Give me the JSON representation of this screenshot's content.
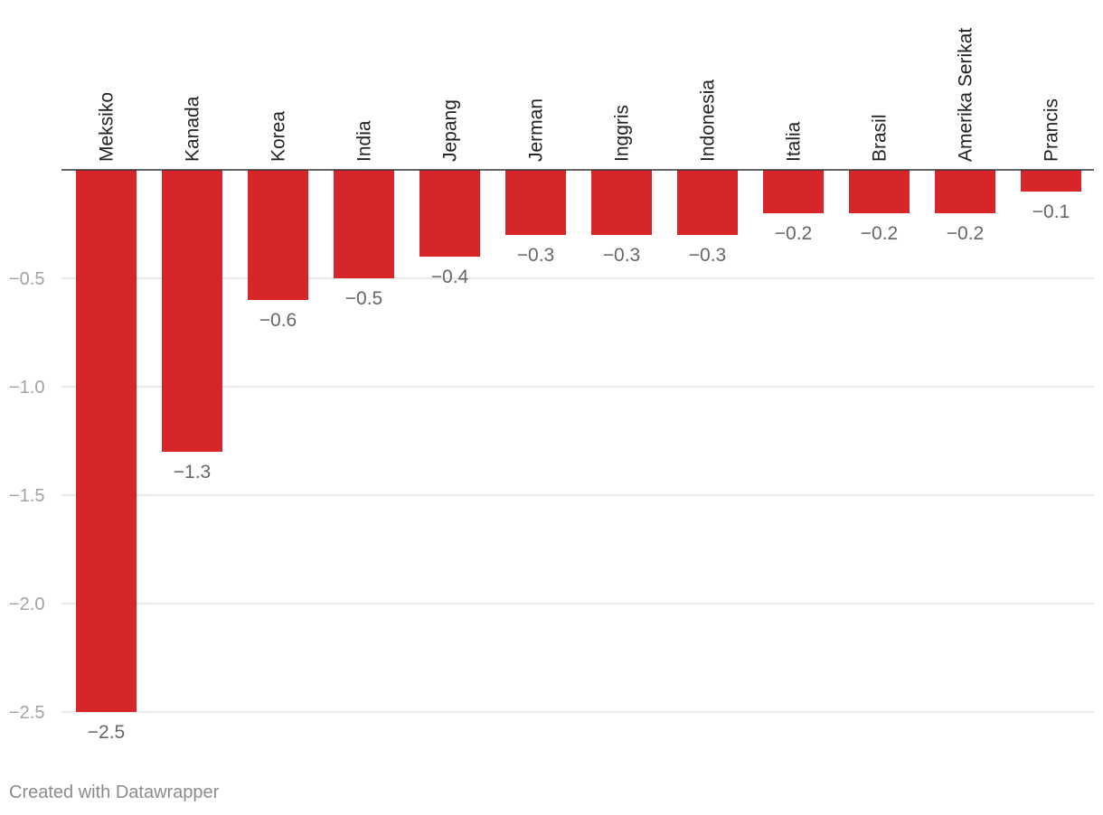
{
  "chart_data": {
    "type": "bar",
    "orientation": "vertical",
    "categories": [
      "Meksiko",
      "Kanada",
      "Korea",
      "India",
      "Jepang",
      "Jerman",
      "Inggris",
      "Indonesia",
      "Italia",
      "Brasil",
      "Amerika Serikat",
      "Prancis"
    ],
    "values": [
      -2.5,
      -1.3,
      -0.6,
      -0.5,
      -0.4,
      -0.3,
      -0.3,
      -0.3,
      -0.2,
      -0.2,
      -0.2,
      -0.1
    ],
    "value_labels": [
      "−2.5",
      "−1.3",
      "−0.6",
      "−0.5",
      "−0.4",
      "−0.3",
      "−0.3",
      "−0.3",
      "−0.2",
      "−0.2",
      "−0.2",
      "−0.1"
    ],
    "ylim": [
      -2.5,
      0
    ],
    "yticks": [
      -0.5,
      -1.0,
      -1.5,
      -2.0,
      -2.5
    ],
    "ytick_labels": [
      "−0.5",
      "−1.0",
      "−1.5",
      "−2.0",
      "−2.5"
    ],
    "bar_color": "#d6262a",
    "grid": true,
    "title": "",
    "xlabel": "",
    "ylabel": ""
  },
  "footer": {
    "credit": "Created with Datawrapper"
  }
}
